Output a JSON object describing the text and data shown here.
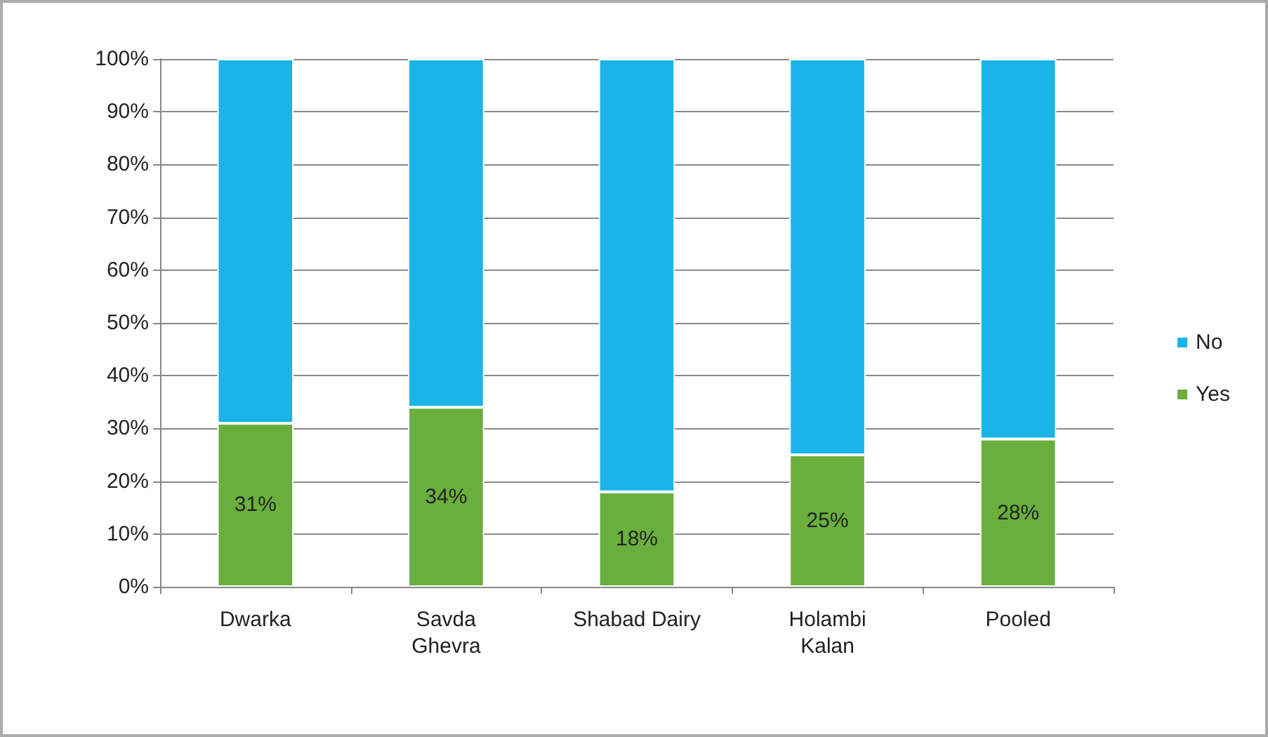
{
  "chart_data": {
    "type": "bar",
    "stacked": true,
    "categories": [
      "Dwarka",
      "Savda\nGhevra",
      "Shabad Dairy",
      "Holambi\nKalan",
      "Pooled"
    ],
    "series": [
      {
        "name": "Yes",
        "color": "#6aaf3d",
        "values": [
          31,
          34,
          18,
          25,
          28
        ],
        "value_labels": [
          "31%",
          "34%",
          "18%",
          "25%",
          "28%"
        ]
      },
      {
        "name": "No",
        "color": "#1ab4e8",
        "values": [
          69,
          66,
          82,
          75,
          72
        ]
      }
    ],
    "ylim": [
      0,
      100
    ],
    "yticks": [
      {
        "value": 0,
        "label": "0%"
      },
      {
        "value": 10,
        "label": "10%"
      },
      {
        "value": 20,
        "label": "20%"
      },
      {
        "value": 30,
        "label": "30%"
      },
      {
        "value": 40,
        "label": "40%"
      },
      {
        "value": 50,
        "label": "50%"
      },
      {
        "value": 60,
        "label": "60%"
      },
      {
        "value": 70,
        "label": "70%"
      },
      {
        "value": 80,
        "label": "80%"
      },
      {
        "value": 90,
        "label": "90%"
      },
      {
        "value": 100,
        "label": "100%"
      }
    ],
    "grid": "y",
    "legend": "right"
  }
}
